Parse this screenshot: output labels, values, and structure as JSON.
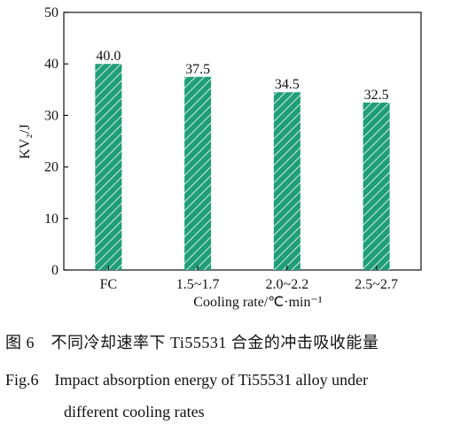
{
  "chart_data": {
    "type": "bar",
    "categories": [
      "FC",
      "1.5~1.7",
      "2.0~2.2",
      "2.5~2.7"
    ],
    "values": [
      40.0,
      37.5,
      34.5,
      32.5
    ],
    "value_labels": [
      "40.0",
      "37.5",
      "34.5",
      "32.5"
    ],
    "xlabel": "Cooling rate/℃·min⁻¹",
    "ylabel": "KV₂/J",
    "ylim": [
      0,
      50
    ],
    "yticks": [
      "0",
      "10",
      "20",
      "30",
      "40",
      "50"
    ],
    "grid": false,
    "bar_color": "#1f9e78"
  },
  "caption": {
    "cn": "图 6　不同冷却速率下 Ti55531 合金的冲击吸收能量",
    "en_line1": "Fig.6 Impact absorption energy of Ti55531 alloy under",
    "en_line2": "different cooling rates"
  }
}
